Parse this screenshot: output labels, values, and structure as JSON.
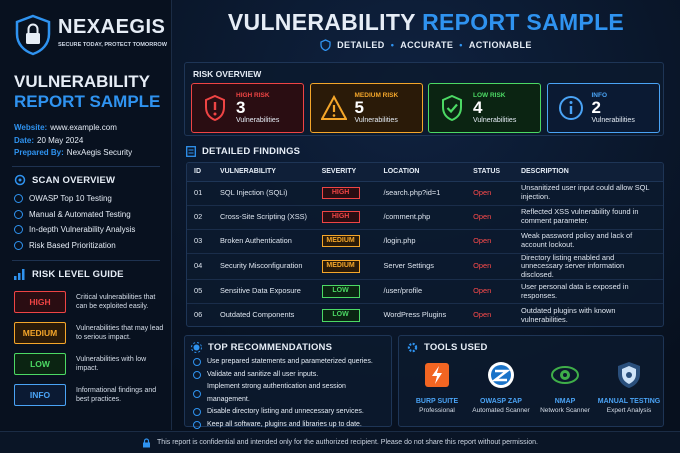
{
  "brand": {
    "name": "NEXAEGIS",
    "tagline": "SECURE TODAY, PROTECT TOMORROW"
  },
  "sidebar": {
    "title_line1": "VULNERABILITY",
    "title_line2": "REPORT SAMPLE",
    "meta": [
      {
        "label": "Website:",
        "value": "www.example.com"
      },
      {
        "label": "Date:",
        "value": "20 May 2024"
      },
      {
        "label": "Prepared By:",
        "value": "NexAegis Security"
      }
    ],
    "scan_overview": {
      "title": "SCAN OVERVIEW",
      "items": [
        "OWASP Top 10 Testing",
        "Manual & Automated Testing",
        "In-depth Vulnerability Analysis",
        "Risk Based Prioritization"
      ]
    },
    "risk_guide": {
      "title": "RISK LEVEL GUIDE",
      "levels": [
        {
          "label": "HIGH",
          "description": "Critical vulnerabilities that can be exploited easily."
        },
        {
          "label": "MEDIUM",
          "description": "Vulnerabilities that may lead to serious impact."
        },
        {
          "label": "LOW",
          "description": "Vulnerabilities with low impact."
        },
        {
          "label": "INFO",
          "description": "Informational findings and best practices."
        }
      ]
    }
  },
  "header": {
    "title_part1": "VULNERABILITY",
    "title_part2": "REPORT SAMPLE",
    "subtitle": [
      "DETAILED",
      "ACCURATE",
      "ACTIONABLE"
    ]
  },
  "risk_overview": {
    "title": "RISK OVERVIEW",
    "cards": [
      {
        "label": "HIGH RISK",
        "count": 3,
        "unit": "Vulnerabilities"
      },
      {
        "label": "MEDIUM RISK",
        "count": 5,
        "unit": "Vulnerabilities"
      },
      {
        "label": "LOW RISK",
        "count": 4,
        "unit": "Vulnerabilities"
      },
      {
        "label": "INFO",
        "count": 2,
        "unit": "Vulnerabilities"
      }
    ]
  },
  "findings": {
    "title": "DETAILED FINDINGS",
    "columns": [
      "ID",
      "VULNERABILITY",
      "SEVERITY",
      "LOCATION",
      "STATUS",
      "DESCRIPTION"
    ],
    "rows": [
      [
        "01",
        "SQL Injection (SQLi)",
        "HIGH",
        "/search.php?id=1",
        "Open",
        "Unsanitized user input could allow SQL injection."
      ],
      [
        "02",
        "Cross-Site Scripting (XSS)",
        "HIGH",
        "/comment.php",
        "Open",
        "Reflected XSS vulnerability found in comment parameter."
      ],
      [
        "03",
        "Broken Authentication",
        "MEDIUM",
        "/login.php",
        "Open",
        "Weak password policy and lack of account lockout."
      ],
      [
        "04",
        "Security Misconfiguration",
        "MEDIUM",
        "Server Settings",
        "Open",
        "Directory listing enabled and unnecessary server information disclosed."
      ],
      [
        "05",
        "Sensitive Data Exposure",
        "LOW",
        "/user/profile",
        "Open",
        "User personal data is exposed in responses."
      ],
      [
        "06",
        "Outdated Components",
        "LOW",
        "WordPress Plugins",
        "Open",
        "Outdated plugins with known vulnerabilities."
      ]
    ]
  },
  "recommendations": {
    "title": "TOP RECOMMENDATIONS",
    "items": [
      "Use prepared statements and parameterized queries.",
      "Validate and sanitize all user inputs.",
      "Implement strong authentication and session management.",
      "Disable directory listing and unnecessary services.",
      "Keep all software, plugins and libraries up to date."
    ]
  },
  "tools": {
    "title": "TOOLS USED",
    "items": [
      {
        "name": "BURP SUITE",
        "role": "Professional"
      },
      {
        "name": "OWASP ZAP",
        "role": "Automated Scanner"
      },
      {
        "name": "NMAP",
        "role": "Network Scanner"
      },
      {
        "name": "MANUAL TESTING",
        "role": "Expert Analysis"
      }
    ]
  },
  "footer": {
    "notice": "This report is confidential and intended only for the authorized recipient. Please do not share this report without permission."
  }
}
